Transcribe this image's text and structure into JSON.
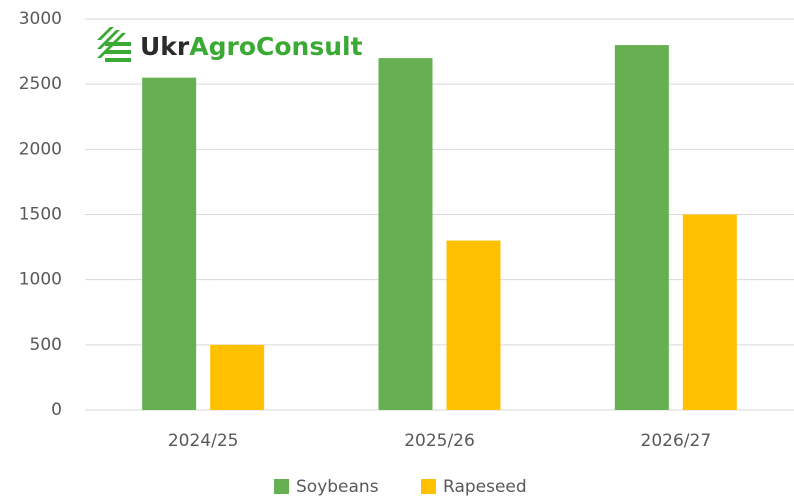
{
  "chart_data": {
    "type": "bar",
    "logo": [
      "Ukr",
      "AgroConsult"
    ],
    "categories": [
      "2024/25",
      "2025/26",
      "2026/27"
    ],
    "series": [
      {
        "name": "Soybeans",
        "color": "#66b052",
        "values": [
          2550,
          2700,
          2800
        ]
      },
      {
        "name": "Rapeseed",
        "color": "#ffc000",
        "values": [
          500,
          1300,
          1500
        ]
      }
    ],
    "ylim": [
      0,
      3000
    ],
    "yticks": [
      0,
      500,
      1000,
      1500,
      2000,
      2500,
      3000
    ],
    "grid": true,
    "legend": "bottom"
  }
}
